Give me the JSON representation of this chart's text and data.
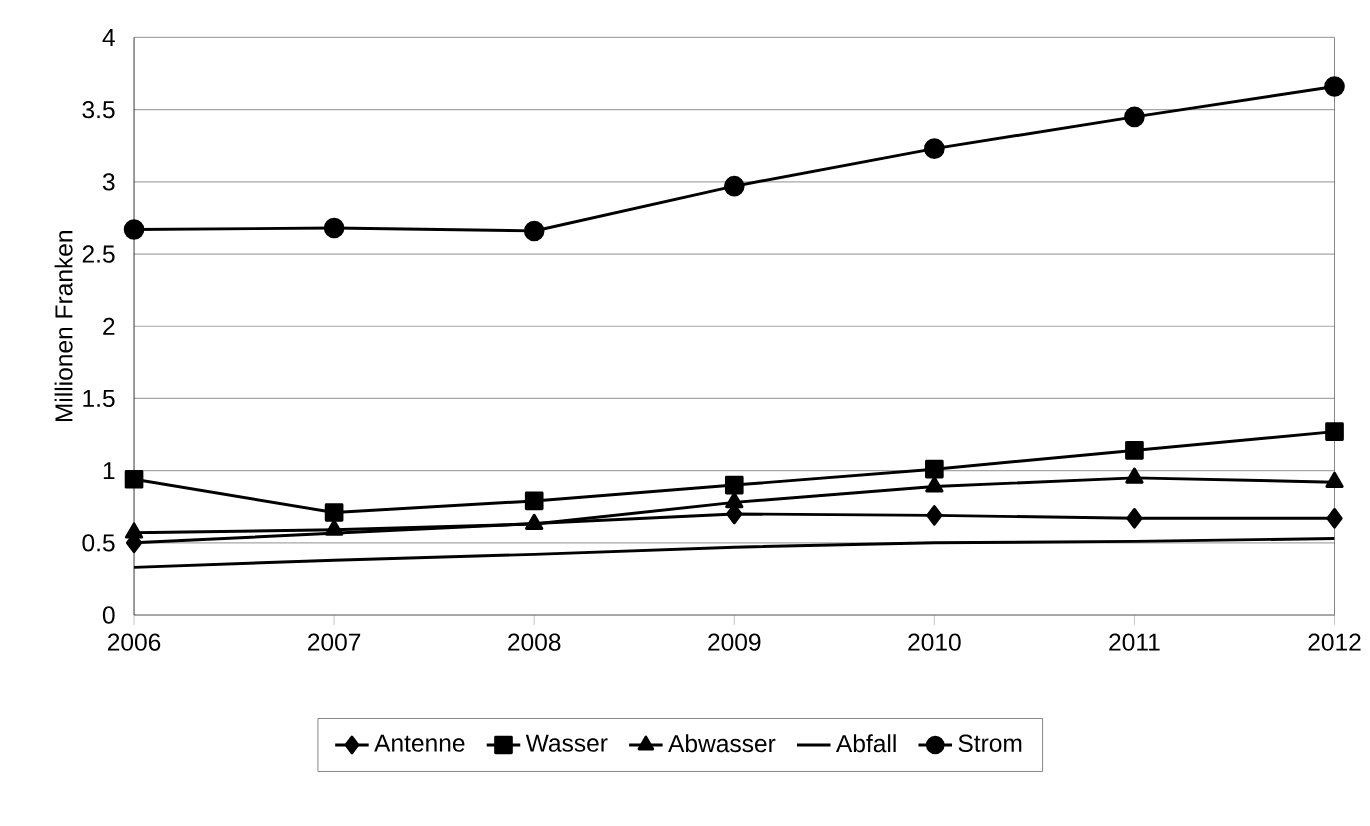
{
  "chart_data": {
    "type": "line",
    "ylabel": "Millionen Franken",
    "categories": [
      "2006",
      "2007",
      "2008",
      "2009",
      "2010",
      "2011",
      "2012"
    ],
    "series": [
      {
        "name": "Antenne",
        "color": "#000000",
        "marker": "diamond",
        "values": [
          0.5,
          null,
          null,
          0.7,
          0.69,
          0.67,
          0.67
        ]
      },
      {
        "name": "Wasser",
        "color": "#000000",
        "marker": "square",
        "values": [
          0.94,
          0.71,
          0.79,
          0.9,
          1.01,
          1.14,
          1.27
        ]
      },
      {
        "name": "Abwasser",
        "color": "#000000",
        "marker": "triangle",
        "values": [
          0.57,
          0.59,
          0.63,
          0.78,
          0.89,
          0.95,
          0.92
        ]
      },
      {
        "name": "Abfall",
        "color": "#000000",
        "marker": "none",
        "values": [
          0.33,
          0.38,
          0.42,
          0.47,
          0.5,
          0.51,
          0.53
        ]
      },
      {
        "name": "Strom",
        "color": "#000000",
        "marker": "circle",
        "values": [
          2.67,
          2.68,
          2.66,
          2.97,
          3.23,
          3.45,
          3.66
        ]
      }
    ],
    "ylim": [
      0,
      4
    ],
    "yticks": [
      0,
      0.5,
      1,
      1.5,
      2,
      2.5,
      3,
      3.5,
      4
    ],
    "grid": "y",
    "legend": "bottom",
    "line_style": "solid"
  }
}
